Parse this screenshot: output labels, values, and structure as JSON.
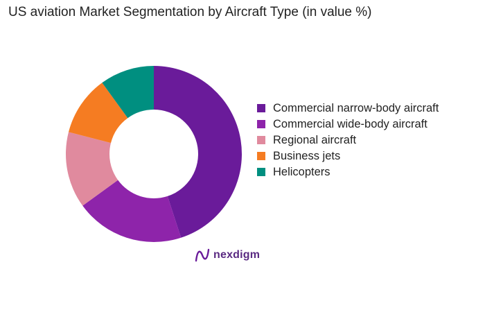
{
  "chart_data": {
    "type": "pie",
    "title": "US aviation Market Segmentation by Aircraft Type (in value %)",
    "donut": true,
    "series": [
      {
        "name": "Commercial narrow-body aircraft",
        "value": 45,
        "color": "#6a1b9a"
      },
      {
        "name": "Commercial wide-body aircraft",
        "value": 20,
        "color": "#8e24aa"
      },
      {
        "name": "Regional aircraft",
        "value": 14,
        "color": "#e08a9e"
      },
      {
        "name": "Business jets",
        "value": 11,
        "color": "#f57c22"
      },
      {
        "name": "Helicopters",
        "value": 10,
        "color": "#008f80"
      }
    ],
    "legend_position": "right"
  },
  "brand": {
    "name": "nexdigm"
  }
}
